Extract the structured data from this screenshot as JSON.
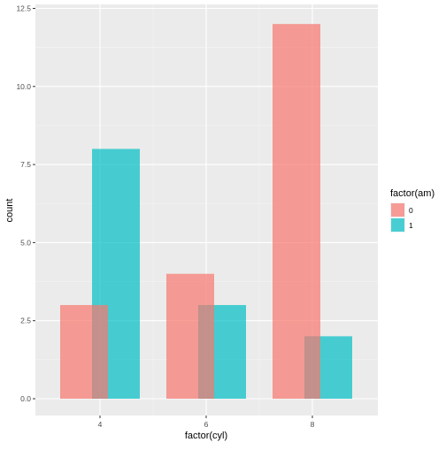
{
  "chart_data": {
    "type": "bar",
    "categories": [
      "4",
      "6",
      "8"
    ],
    "series": [
      {
        "name": "0",
        "values": [
          3,
          4,
          12
        ]
      },
      {
        "name": "1",
        "values": [
          8,
          3,
          2
        ]
      }
    ],
    "xlabel": "factor(cyl)",
    "ylabel": "count",
    "ylim": [
      0,
      12.5
    ],
    "yticks": [
      0.0,
      2.5,
      5.0,
      7.5,
      10.0,
      12.5
    ],
    "ytick_labels": [
      "0.0",
      "2.5",
      "5.0",
      "7.5",
      "10.0",
      "12.5"
    ],
    "grid": true,
    "legend": {
      "title": "factor(am)",
      "position": "right",
      "entries": [
        "0",
        "1"
      ]
    },
    "colors": {
      "panel_bg": "#EBEBEB",
      "grid_major": "#FFFFFF",
      "series_0": "#F8766D",
      "series_1": "#00BFC4",
      "bar_alpha": 0.7
    }
  }
}
